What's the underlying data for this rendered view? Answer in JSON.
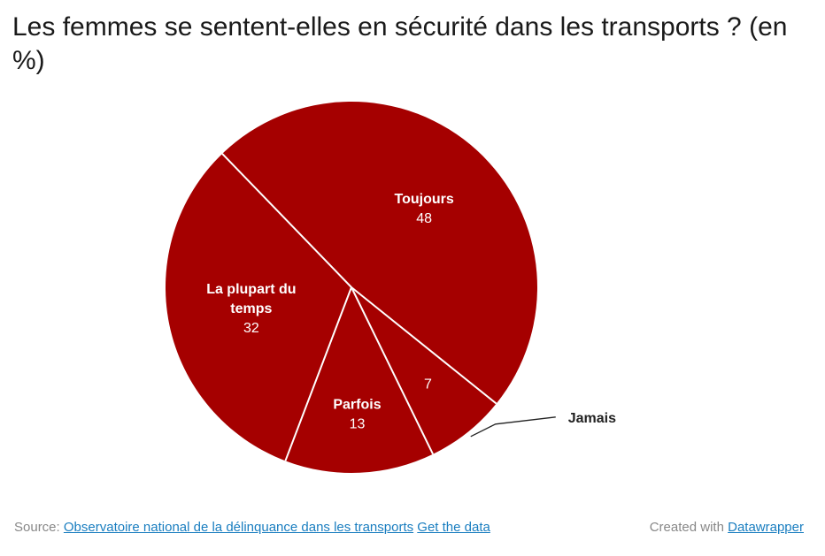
{
  "title": "Les femmes se sentent-elles en sécurité dans les transports ? (en %)",
  "colors": {
    "slice": "#a50000",
    "separator": "#ffffff",
    "link": "#1a7ec0",
    "footer_text": "#888888"
  },
  "chart_data": {
    "type": "pie",
    "unit": "%",
    "slices": [
      {
        "label": "Toujours",
        "value": 48,
        "label_position": "inside"
      },
      {
        "label": "Jamais",
        "value": 7,
        "label_position": "outside"
      },
      {
        "label": "Parfois",
        "value": 13,
        "label_position": "inside"
      },
      {
        "label": "La plupart du temps",
        "value": 32,
        "label_position": "inside"
      }
    ]
  },
  "footer": {
    "source_prefix": "Source:",
    "source_link": "Observatoire national de la délinquance dans les transports",
    "data_link": "Get the data",
    "created_prefix": "Created with",
    "created_link": "Datawrapper"
  }
}
